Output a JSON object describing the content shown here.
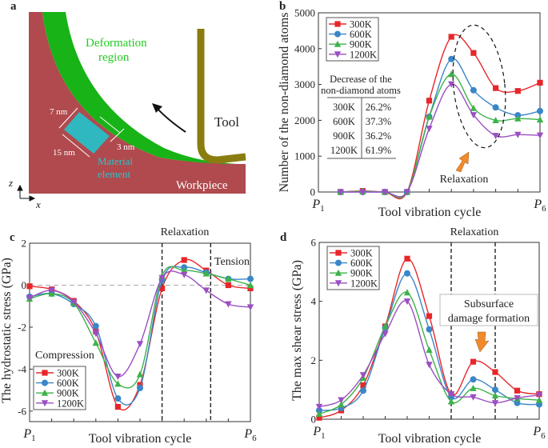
{
  "panel_a": {
    "label": "a",
    "deformation_label_1": "Deformation",
    "deformation_label_2": "region",
    "tool_label": "Tool",
    "material_label_1": "Material",
    "material_label_2": "element",
    "workpiece_label": "Workpiece",
    "dim_7": "7 nm",
    "dim_15": "15 nm",
    "dim_3": "3 nm",
    "axis_z": "z",
    "axis_x": "x",
    "colors": {
      "workpiece": "#b04a4e",
      "deformation": "#17b317",
      "material": "#2fb8c0",
      "tool": "#8a7d10"
    }
  },
  "series_colors": {
    "300K": "#e8262a",
    "600K": "#3a86c8",
    "900K": "#3db24a",
    "1200K": "#9b4fc2"
  },
  "chart_data": [
    {
      "panel": "b",
      "type": "line",
      "xlabel": "Tool vibration cycle",
      "ylabel": "Number of the non-diamond atoms",
      "x_tick_labels": [
        "P1",
        "P6"
      ],
      "xlim": [
        0,
        10
      ],
      "ylim": [
        0,
        5000
      ],
      "yticks": [
        0,
        1000,
        2000,
        3000,
        4000,
        5000
      ],
      "legend": "top-left",
      "x": [
        1,
        2,
        3,
        4,
        5,
        6,
        7,
        8,
        9,
        10
      ],
      "series": [
        {
          "name": "300K",
          "marker": "square",
          "values": [
            0,
            30,
            0,
            0,
            2550,
            4330,
            3880,
            2900,
            2820,
            3050
          ]
        },
        {
          "name": "600K",
          "marker": "circle",
          "values": [
            0,
            0,
            0,
            0,
            2100,
            3710,
            2840,
            2360,
            2140,
            2260
          ]
        },
        {
          "name": "900K",
          "marker": "triangle-up",
          "values": [
            0,
            20,
            0,
            0,
            2100,
            3290,
            2340,
            2000,
            2050,
            2020
          ]
        },
        {
          "name": "1200K",
          "marker": "triangle-down",
          "values": [
            0,
            0,
            0,
            0,
            1770,
            3010,
            2150,
            1570,
            1600,
            1580
          ]
        }
      ],
      "table": {
        "title_1": "Decrease of the",
        "title_2": "non-diamond atoms",
        "rows": [
          [
            "300K",
            "26.2%"
          ],
          [
            "600K",
            "37.3%"
          ],
          [
            "900K",
            "36.2%"
          ],
          [
            "1200K",
            "61.9%"
          ]
        ]
      },
      "annotations": {
        "relaxation": "Relaxation"
      }
    },
    {
      "panel": "c",
      "type": "line",
      "xlabel": "Tool vibration cycle",
      "ylabel": "The hydrostatic stress (GPa)",
      "x_tick_labels": [
        "P1",
        "P6"
      ],
      "xlim": [
        0,
        10
      ],
      "ylim": [
        -6.5,
        2
      ],
      "yticks": [
        -6,
        -4,
        -2,
        0,
        2
      ],
      "legend": "bottom-left",
      "x": [
        0,
        1,
        2,
        3,
        4,
        5,
        6,
        7,
        8,
        9,
        10
      ],
      "series": [
        {
          "name": "300K",
          "marker": "square",
          "values": [
            -0.05,
            -0.2,
            -0.75,
            -2.2,
            -5.8,
            -4.75,
            -0.15,
            1.2,
            0.7,
            0.0,
            -0.15
          ]
        },
        {
          "name": "600K",
          "marker": "circle",
          "values": [
            -0.55,
            -0.4,
            -0.9,
            -1.95,
            -5.4,
            -4.9,
            0.25,
            0.85,
            0.6,
            0.3,
            0.3
          ]
        },
        {
          "name": "900K",
          "marker": "triangle-up",
          "values": [
            -0.65,
            -0.4,
            -0.85,
            -2.75,
            -4.7,
            -4.25,
            0.45,
            0.7,
            0.55,
            0.3,
            0.0
          ]
        },
        {
          "name": "1200K",
          "marker": "triangle-down",
          "values": [
            -0.6,
            -0.25,
            -0.8,
            -2.3,
            -4.35,
            -2.8,
            0.35,
            0.5,
            -0.25,
            -0.9,
            -1.05
          ]
        }
      ],
      "reference_line_y": 0,
      "vertical_dashed_x": [
        6,
        8.2
      ],
      "annotations": {
        "relaxation": "Relaxation",
        "tension": "Tension",
        "compression": "Compression"
      }
    },
    {
      "panel": "d",
      "type": "line",
      "xlabel": "Tool vibration cycle",
      "ylabel": "The max shear stress (GPa)",
      "x_tick_labels": [
        "P1",
        "P6"
      ],
      "xlim": [
        0,
        10
      ],
      "ylim": [
        0,
        6
      ],
      "yticks": [
        0,
        2,
        4,
        6
      ],
      "legend": "top-left",
      "x": [
        0,
        1,
        2,
        3,
        4,
        5,
        6,
        7,
        8,
        9,
        10
      ],
      "series": [
        {
          "name": "300K",
          "marker": "square",
          "values": [
            0.05,
            0.3,
            1.15,
            3.15,
            5.45,
            3.5,
            0.85,
            1.95,
            1.6,
            0.97,
            0.85
          ]
        },
        {
          "name": "600K",
          "marker": "circle",
          "values": [
            0.3,
            0.38,
            0.97,
            3.1,
            4.95,
            3.05,
            0.75,
            1.35,
            1.0,
            0.55,
            0.5
          ]
        },
        {
          "name": "900K",
          "marker": "triangle-up",
          "values": [
            0.18,
            0.5,
            1.4,
            3.15,
            4.3,
            2.35,
            0.6,
            1.05,
            0.8,
            0.7,
            0.65
          ]
        },
        {
          "name": "1200K",
          "marker": "triangle-down",
          "values": [
            0.42,
            0.65,
            1.5,
            2.9,
            4.0,
            1.85,
            0.85,
            0.75,
            0.55,
            0.72,
            0.82
          ]
        }
      ],
      "vertical_dashed_x": [
        6,
        8
      ],
      "annotations": {
        "relaxation": "Relaxation",
        "box_1": "Subsurface",
        "box_2": "damage formation"
      }
    }
  ],
  "panel_labels": {
    "b": "b",
    "c": "c",
    "d": "d"
  }
}
